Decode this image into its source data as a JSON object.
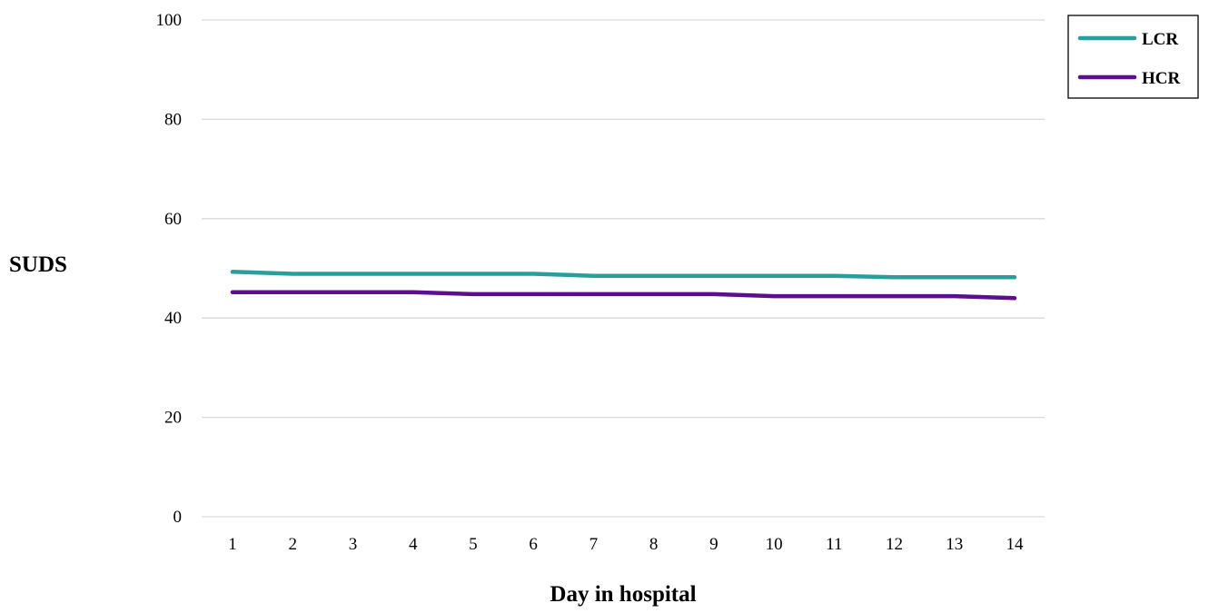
{
  "chart_data": {
    "type": "line",
    "title": "",
    "xlabel": "Day in hospital",
    "ylabel": "SUDS",
    "x": [
      1,
      2,
      3,
      4,
      5,
      6,
      7,
      8,
      9,
      10,
      11,
      12,
      13,
      14
    ],
    "ylim": [
      0,
      100
    ],
    "yticks": [
      0,
      20,
      40,
      60,
      80,
      100
    ],
    "grid": true,
    "legend_position": "top-right",
    "series": [
      {
        "name": "LCR",
        "color": "#2a9d9d",
        "values": [
          49.3,
          48.9,
          48.9,
          48.9,
          48.9,
          48.9,
          48.5,
          48.5,
          48.5,
          48.5,
          48.5,
          48.2,
          48.2,
          48.2
        ]
      },
      {
        "name": "HCR",
        "color": "#5b0f8f",
        "values": [
          45.2,
          45.2,
          45.2,
          45.2,
          44.8,
          44.8,
          44.8,
          44.8,
          44.8,
          44.4,
          44.4,
          44.4,
          44.4,
          44.0
        ]
      }
    ]
  }
}
